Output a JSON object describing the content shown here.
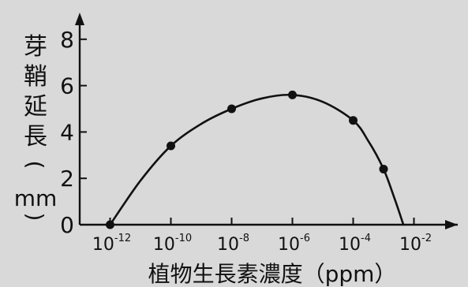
{
  "chart_data": {
    "type": "line",
    "title": "",
    "xlabel": "植物生長素濃度（ppm）",
    "ylabel": "芽鞘延長（mm）",
    "x_scale": "log10",
    "xlim": [
      1e-13,
      0.01
    ],
    "ylim": [
      0,
      9
    ],
    "x_ticks": [
      {
        "value": 1e-12,
        "base": "10",
        "exp": "-12"
      },
      {
        "value": 1e-10,
        "base": "10",
        "exp": "-10"
      },
      {
        "value": 1e-08,
        "base": "10",
        "exp": "-8"
      },
      {
        "value": 1e-06,
        "base": "10",
        "exp": "-6"
      },
      {
        "value": 0.0001,
        "base": "10",
        "exp": "-4"
      },
      {
        "value": 0.01,
        "base": "10",
        "exp": "-2"
      }
    ],
    "y_ticks": [
      0,
      2,
      4,
      6,
      8
    ],
    "series": [
      {
        "points": [
          {
            "x": 1e-12,
            "y": 0
          },
          {
            "x": 1e-10,
            "y": 3.4
          },
          {
            "x": 1e-08,
            "y": 5.0
          },
          {
            "x": 1e-06,
            "y": 5.6
          },
          {
            "x": 0.0001,
            "y": 4.5
          },
          {
            "x": 0.001,
            "y": 2.4
          }
        ],
        "curve": [
          {
            "x": 1e-12,
            "y": 0
          },
          {
            "x": 1e-11,
            "y": 1.9
          },
          {
            "x": 1e-10,
            "y": 3.4
          },
          {
            "x": 1e-09,
            "y": 4.35
          },
          {
            "x": 1e-08,
            "y": 5.0
          },
          {
            "x": 1e-07,
            "y": 5.45
          },
          {
            "x": 1e-06,
            "y": 5.6
          },
          {
            "x": 1e-05,
            "y": 5.3
          },
          {
            "x": 0.0001,
            "y": 4.5
          },
          {
            "x": 0.00032,
            "y": 3.6
          },
          {
            "x": 0.001,
            "y": 2.4
          },
          {
            "x": 0.0022,
            "y": 1.2
          },
          {
            "x": 0.0045,
            "y": 0
          }
        ]
      }
    ],
    "grid": false,
    "legend": "none",
    "colors": {
      "line": "#111111",
      "background": "#d9d9d9"
    }
  }
}
